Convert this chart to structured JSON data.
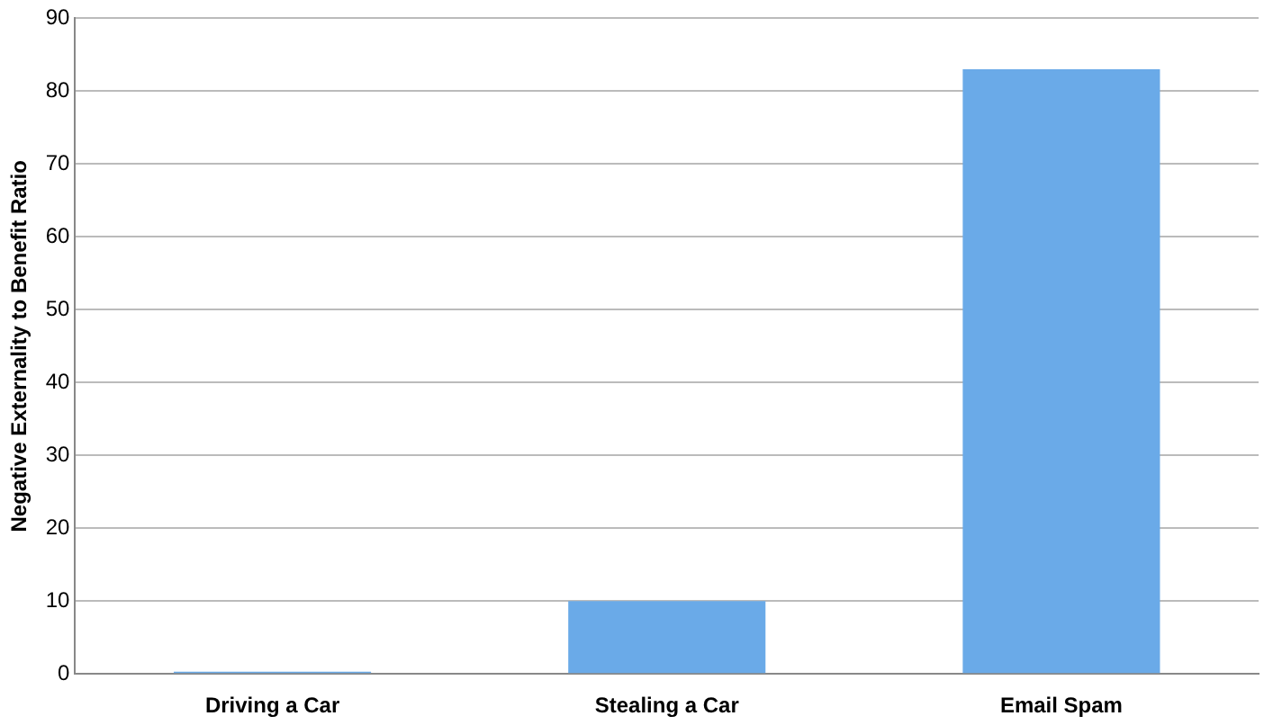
{
  "chart_data": {
    "type": "bar",
    "ylabel": "Negative Externality to Benefit Ratio",
    "categories": [
      "Driving a Car",
      "Stealing a Car",
      "Email Spam"
    ],
    "values": [
      0.3,
      10,
      83
    ],
    "color": "#6aaae8",
    "ylim": [
      0,
      90
    ],
    "yticks": [
      0,
      10,
      20,
      30,
      40,
      50,
      60,
      70,
      80,
      90
    ],
    "grid": "y"
  }
}
